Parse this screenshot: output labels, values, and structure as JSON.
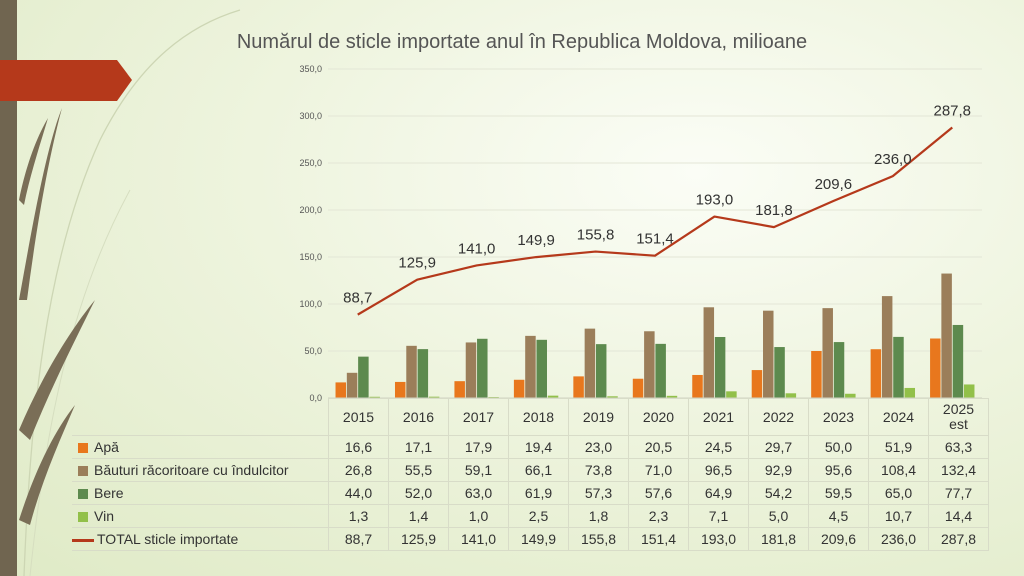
{
  "chart_data": {
    "type": "bar",
    "title": "Numărul de sticle importate anul în Republica Moldova, milioane",
    "categories": [
      "2015",
      "2016",
      "2017",
      "2018",
      "2019",
      "2020",
      "2021",
      "2022",
      "2023",
      "2024",
      "2025 est"
    ],
    "ylim": [
      0,
      350
    ],
    "yticks": [
      "0,0",
      "50,0",
      "100,0",
      "150,0",
      "200,0",
      "250,0",
      "300,0",
      "350,0"
    ],
    "series": [
      {
        "name": "Apă",
        "type": "bar",
        "color": "#e8771d",
        "values": [
          16.6,
          17.1,
          17.9,
          19.4,
          23.0,
          20.5,
          24.5,
          29.7,
          50.0,
          51.9,
          63.3
        ],
        "labels": [
          "16,6",
          "17,1",
          "17,9",
          "19,4",
          "23,0",
          "20,5",
          "24,5",
          "29,7",
          "50,0",
          "51,9",
          "63,3"
        ]
      },
      {
        "name": "Băuturi răcoritoare cu îndulcitor",
        "type": "bar",
        "color": "#9b7e5a",
        "values": [
          26.8,
          55.5,
          59.1,
          66.1,
          73.8,
          71.0,
          96.5,
          92.9,
          95.6,
          108.4,
          132.4
        ],
        "labels": [
          "26,8",
          "55,5",
          "59,1",
          "66,1",
          "73,8",
          "71,0",
          "96,5",
          "92,9",
          "95,6",
          "108,4",
          "132,4"
        ]
      },
      {
        "name": "Bere",
        "type": "bar",
        "color": "#5d8a4e",
        "values": [
          44.0,
          52.0,
          63.0,
          61.9,
          57.3,
          57.6,
          64.9,
          54.2,
          59.5,
          65.0,
          77.7
        ],
        "labels": [
          "44,0",
          "52,0",
          "63,0",
          "61,9",
          "57,3",
          "57,6",
          "64,9",
          "54,2",
          "59,5",
          "65,0",
          "77,7"
        ]
      },
      {
        "name": "Vin",
        "type": "bar",
        "color": "#92c049",
        "values": [
          1.3,
          1.4,
          1.0,
          2.5,
          1.8,
          2.3,
          7.1,
          5.0,
          4.5,
          10.7,
          14.4
        ],
        "labels": [
          "1,3",
          "1,4",
          "1,0",
          "2,5",
          "1,8",
          "2,3",
          "7,1",
          "5,0",
          "4,5",
          "10,7",
          "14,4"
        ]
      },
      {
        "name": "TOTAL sticle importate",
        "type": "line",
        "color": "#b5391b",
        "values": [
          88.7,
          125.9,
          141.0,
          149.9,
          155.8,
          151.4,
          193.0,
          181.8,
          209.6,
          236.0,
          287.8
        ],
        "labels": [
          "88,7",
          "125,9",
          "141,0",
          "149,9",
          "155,8",
          "151,4",
          "193,0",
          "181,8",
          "209,6",
          "236,0",
          "287,8"
        ]
      }
    ],
    "data_labels_on_line": true,
    "data_table": true,
    "grid": true
  },
  "colors": {
    "accent_bar": "#b5391b",
    "stem": "#706550"
  }
}
